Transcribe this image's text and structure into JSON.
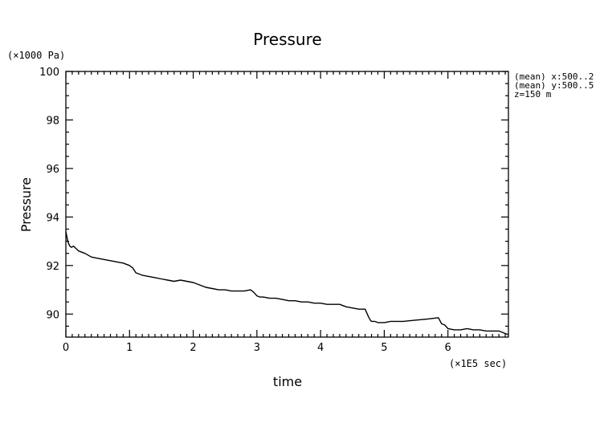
{
  "chart_data": {
    "type": "line",
    "title": "Pressure",
    "xlabel": "time",
    "ylabel": "Pressure",
    "x_unit": "(×1E5 sec)",
    "y_unit": "(×1000 Pa)",
    "xlim": [
      0,
      6.95
    ],
    "ylim": [
      89.05,
      100
    ],
    "xticks": [
      0,
      1,
      2,
      3,
      4,
      5,
      6
    ],
    "yticks": [
      90,
      92,
      94,
      96,
      98,
      100
    ],
    "xtick_labels": [
      "0",
      "1",
      "2",
      "3",
      "4",
      "5",
      "6"
    ],
    "ytick_labels": [
      "90",
      "92",
      "94",
      "96",
      "98",
      "100"
    ],
    "grid": false,
    "annotations": [
      "(mean) x:500..2",
      "(mean) y:500..5",
      "z=150 m"
    ],
    "series": [
      {
        "x": [
          0,
          0.03,
          0.06,
          0.09,
          0.12,
          0.2,
          0.3,
          0.4,
          0.5,
          0.6,
          0.7,
          0.8,
          0.9,
          1.0,
          1.05,
          1.1,
          1.2,
          1.3,
          1.4,
          1.5,
          1.6,
          1.7,
          1.8,
          1.9,
          2.0,
          2.1,
          2.2,
          2.3,
          2.4,
          2.5,
          2.6,
          2.7,
          2.8,
          2.9,
          2.95,
          3.0,
          3.05,
          3.1,
          3.2,
          3.3,
          3.4,
          3.5,
          3.6,
          3.7,
          3.8,
          3.9,
          4.0,
          4.1,
          4.2,
          4.3,
          4.4,
          4.5,
          4.6,
          4.7,
          4.75,
          4.78,
          4.8,
          4.85,
          4.9,
          5.0,
          5.1,
          5.3,
          5.5,
          5.7,
          5.85,
          5.9,
          5.95,
          6.0,
          6.1,
          6.2,
          6.3,
          6.4,
          6.5,
          6.6,
          6.7,
          6.8,
          6.9,
          6.95
        ],
        "y": [
          93.4,
          93.0,
          92.8,
          92.75,
          92.8,
          92.6,
          92.5,
          92.35,
          92.3,
          92.25,
          92.2,
          92.15,
          92.1,
          92.0,
          91.9,
          91.7,
          91.6,
          91.55,
          91.5,
          91.45,
          91.4,
          91.35,
          91.4,
          91.35,
          91.3,
          91.2,
          91.1,
          91.05,
          91.0,
          91.0,
          90.95,
          90.95,
          90.95,
          91.0,
          90.9,
          90.75,
          90.7,
          90.7,
          90.65,
          90.65,
          90.6,
          90.55,
          90.55,
          90.5,
          90.5,
          90.45,
          90.45,
          90.4,
          90.4,
          90.4,
          90.3,
          90.25,
          90.2,
          90.2,
          89.9,
          89.75,
          89.7,
          89.7,
          89.65,
          89.65,
          89.7,
          89.7,
          89.75,
          89.8,
          89.85,
          89.6,
          89.55,
          89.4,
          89.35,
          89.35,
          89.4,
          89.35,
          89.35,
          89.3,
          89.3,
          89.3,
          89.2,
          89.15
        ]
      }
    ]
  }
}
